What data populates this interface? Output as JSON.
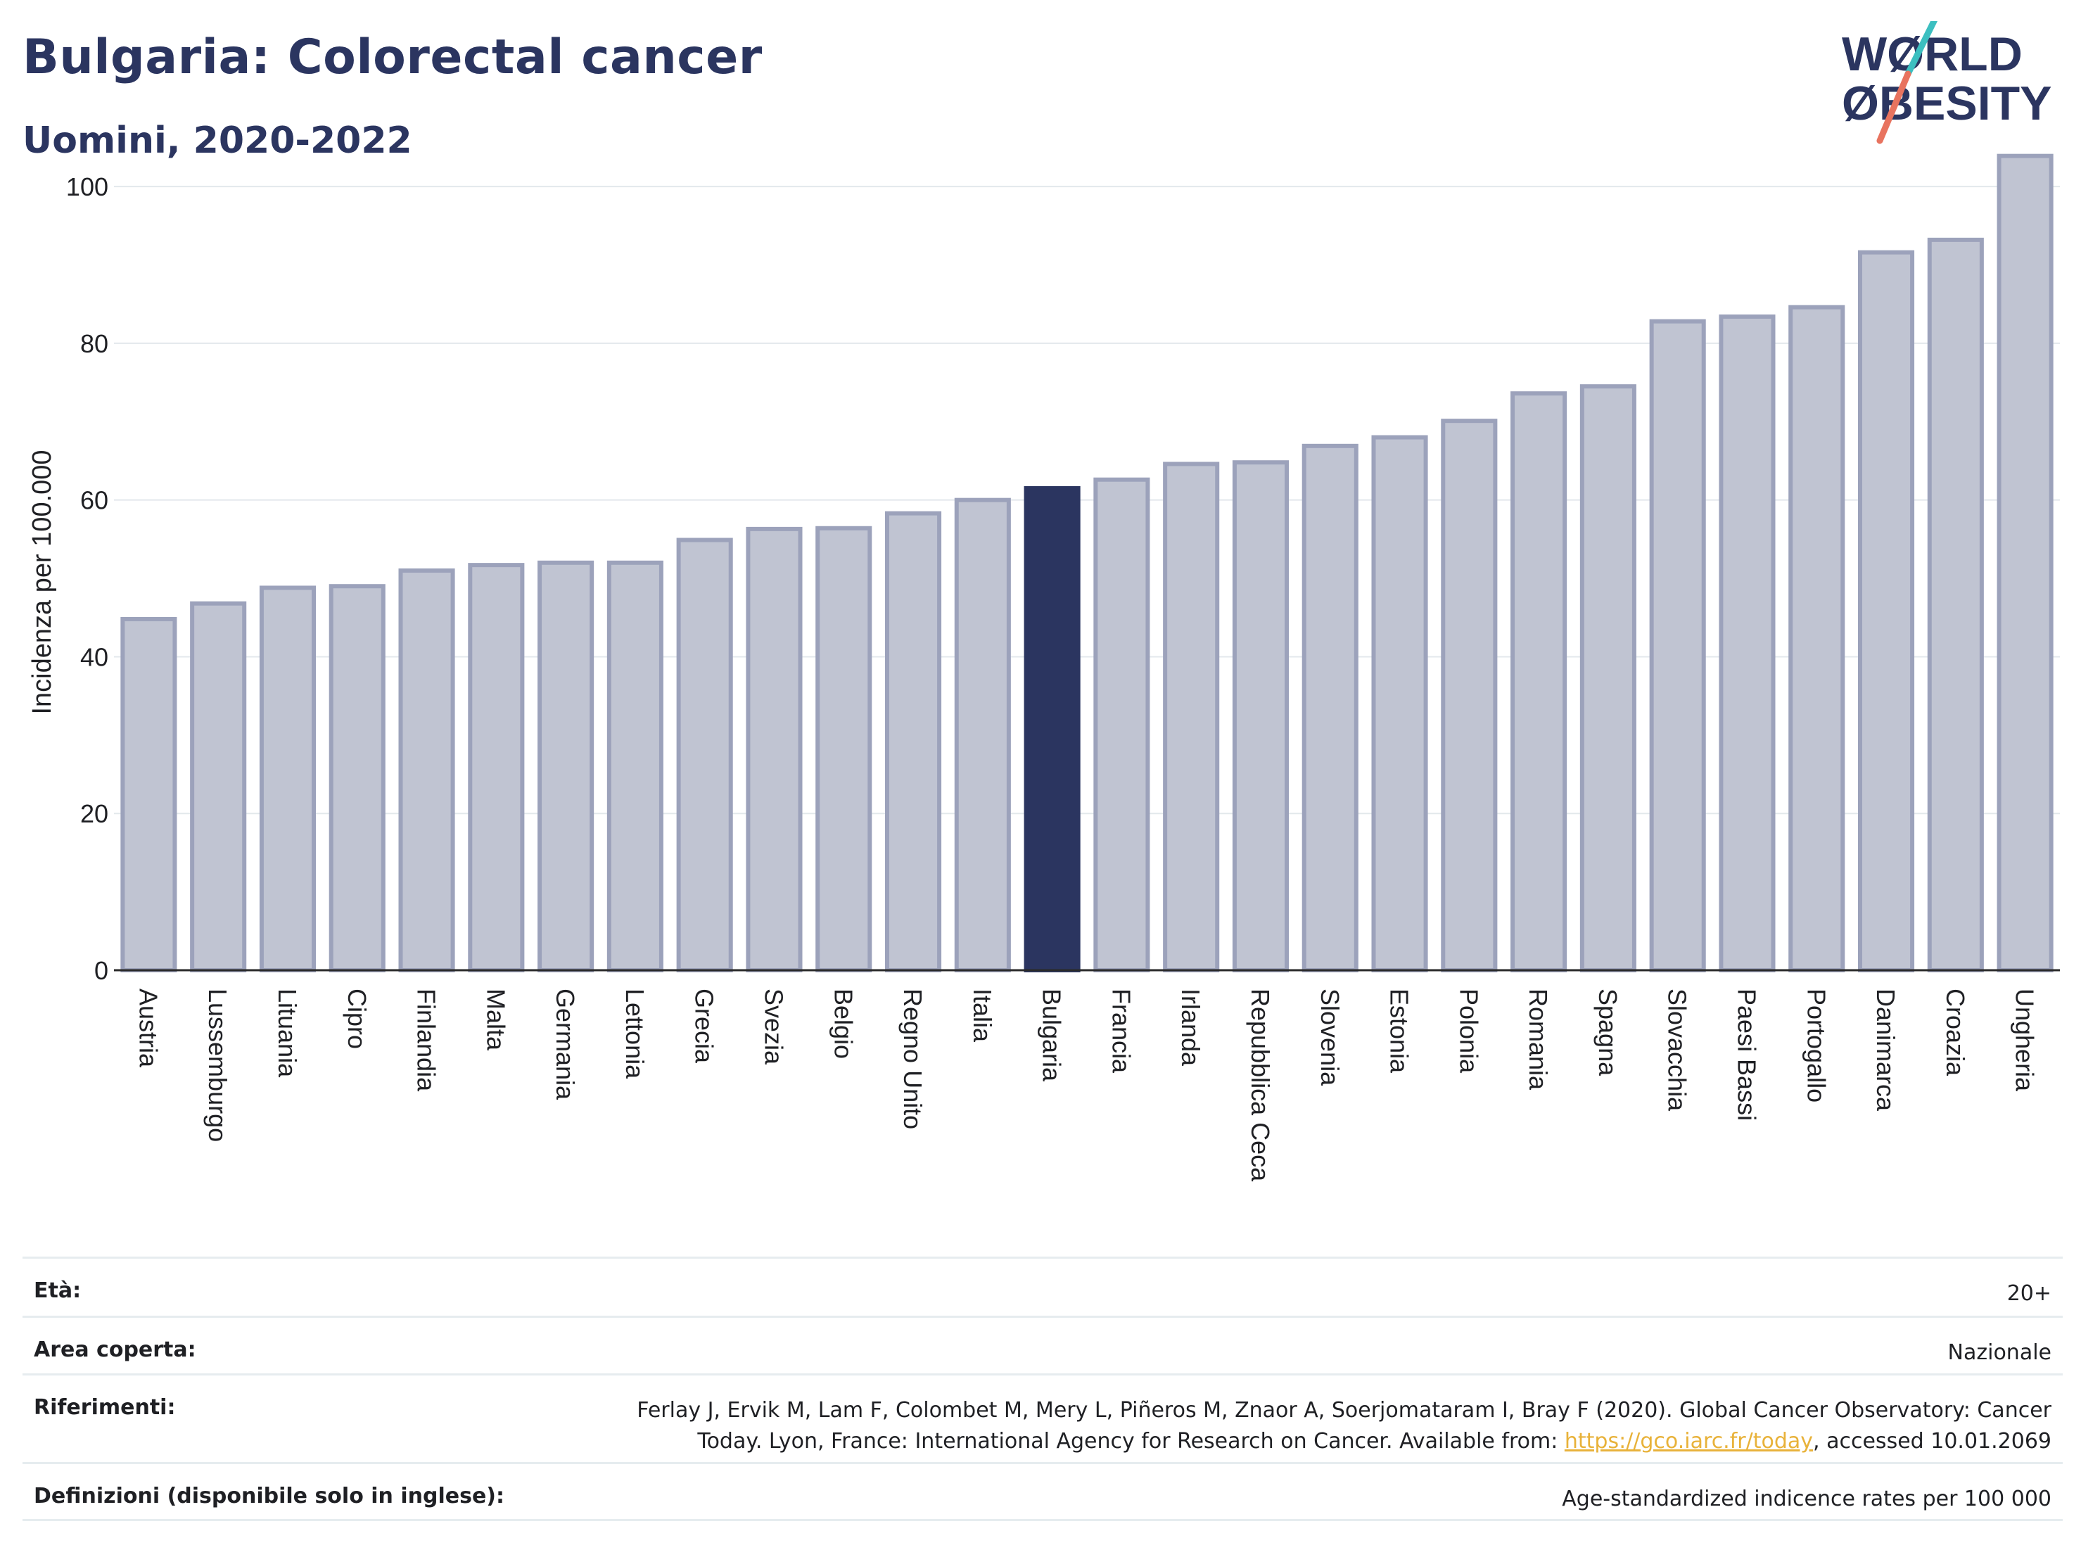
{
  "header": {
    "title": "Bulgaria: Colorectal cancer",
    "subtitle": "Uomini, 2020-2022"
  },
  "logo": {
    "line1": "WØRLD",
    "line2": "ØBESITY",
    "text_color": "#2b3560",
    "slash_top_color": "#3cbfc0",
    "slash_bottom_color": "#e8735f"
  },
  "chart_data": {
    "type": "bar",
    "ylabel": "Incidenza per 100.000",
    "xlabel": "",
    "ylim": [
      0,
      108
    ],
    "yticks": [
      0,
      20,
      40,
      60,
      80,
      100
    ],
    "grid": true,
    "highlight": "Bulgaria",
    "bar_color": "#c0c4d2",
    "bar_border_color": "#9ca2bb",
    "highlight_color": "#2b3560",
    "categories": [
      "Austria",
      "Lussemburgo",
      "Lituania",
      "Cipro",
      "Finlandia",
      "Malta",
      "Germania",
      "Lettonia",
      "Grecia",
      "Svezia",
      "Belgio",
      "Regno Unito",
      "Italia",
      "Bulgaria",
      "Francia",
      "Irlanda",
      "Repubblica Ceca",
      "Slovenia",
      "Estonia",
      "Polonia",
      "Romania",
      "Spagna",
      "Slovacchia",
      "Paesi Bassi",
      "Portogallo",
      "Danimarca",
      "Croazia",
      "Ungheria"
    ],
    "values": [
      44.8,
      46.8,
      48.8,
      49.0,
      51.0,
      51.7,
      52.0,
      52.0,
      54.9,
      56.3,
      56.4,
      58.3,
      60.0,
      61.5,
      62.6,
      64.6,
      64.8,
      66.9,
      68.0,
      70.1,
      73.6,
      74.5,
      82.8,
      83.4,
      84.6,
      91.6,
      93.2,
      103.9
    ]
  },
  "info": {
    "rows": [
      {
        "label": "Età:",
        "value": "20+"
      },
      {
        "label": "Area coperta:",
        "value": "Nazionale"
      },
      {
        "label": "Riferimenti:",
        "value_line1": "Ferlay J, Ervik M, Lam F, Colombet M, Mery L, Piñeros M, Znaor A, Soerjomataram I, Bray F (2020). Global Cancer Observatory: Cancer",
        "value_line2_pre": "Today. Lyon, France: International Agency for Research on Cancer. Available from: ",
        "value_link": "https://gco.iarc.fr/today",
        "value_line2_post": ", accessed 10.01.2069"
      },
      {
        "label": "Definizioni (disponibile solo in inglese):",
        "value": "Age-standardized indicence rates per 100 000"
      }
    ]
  }
}
